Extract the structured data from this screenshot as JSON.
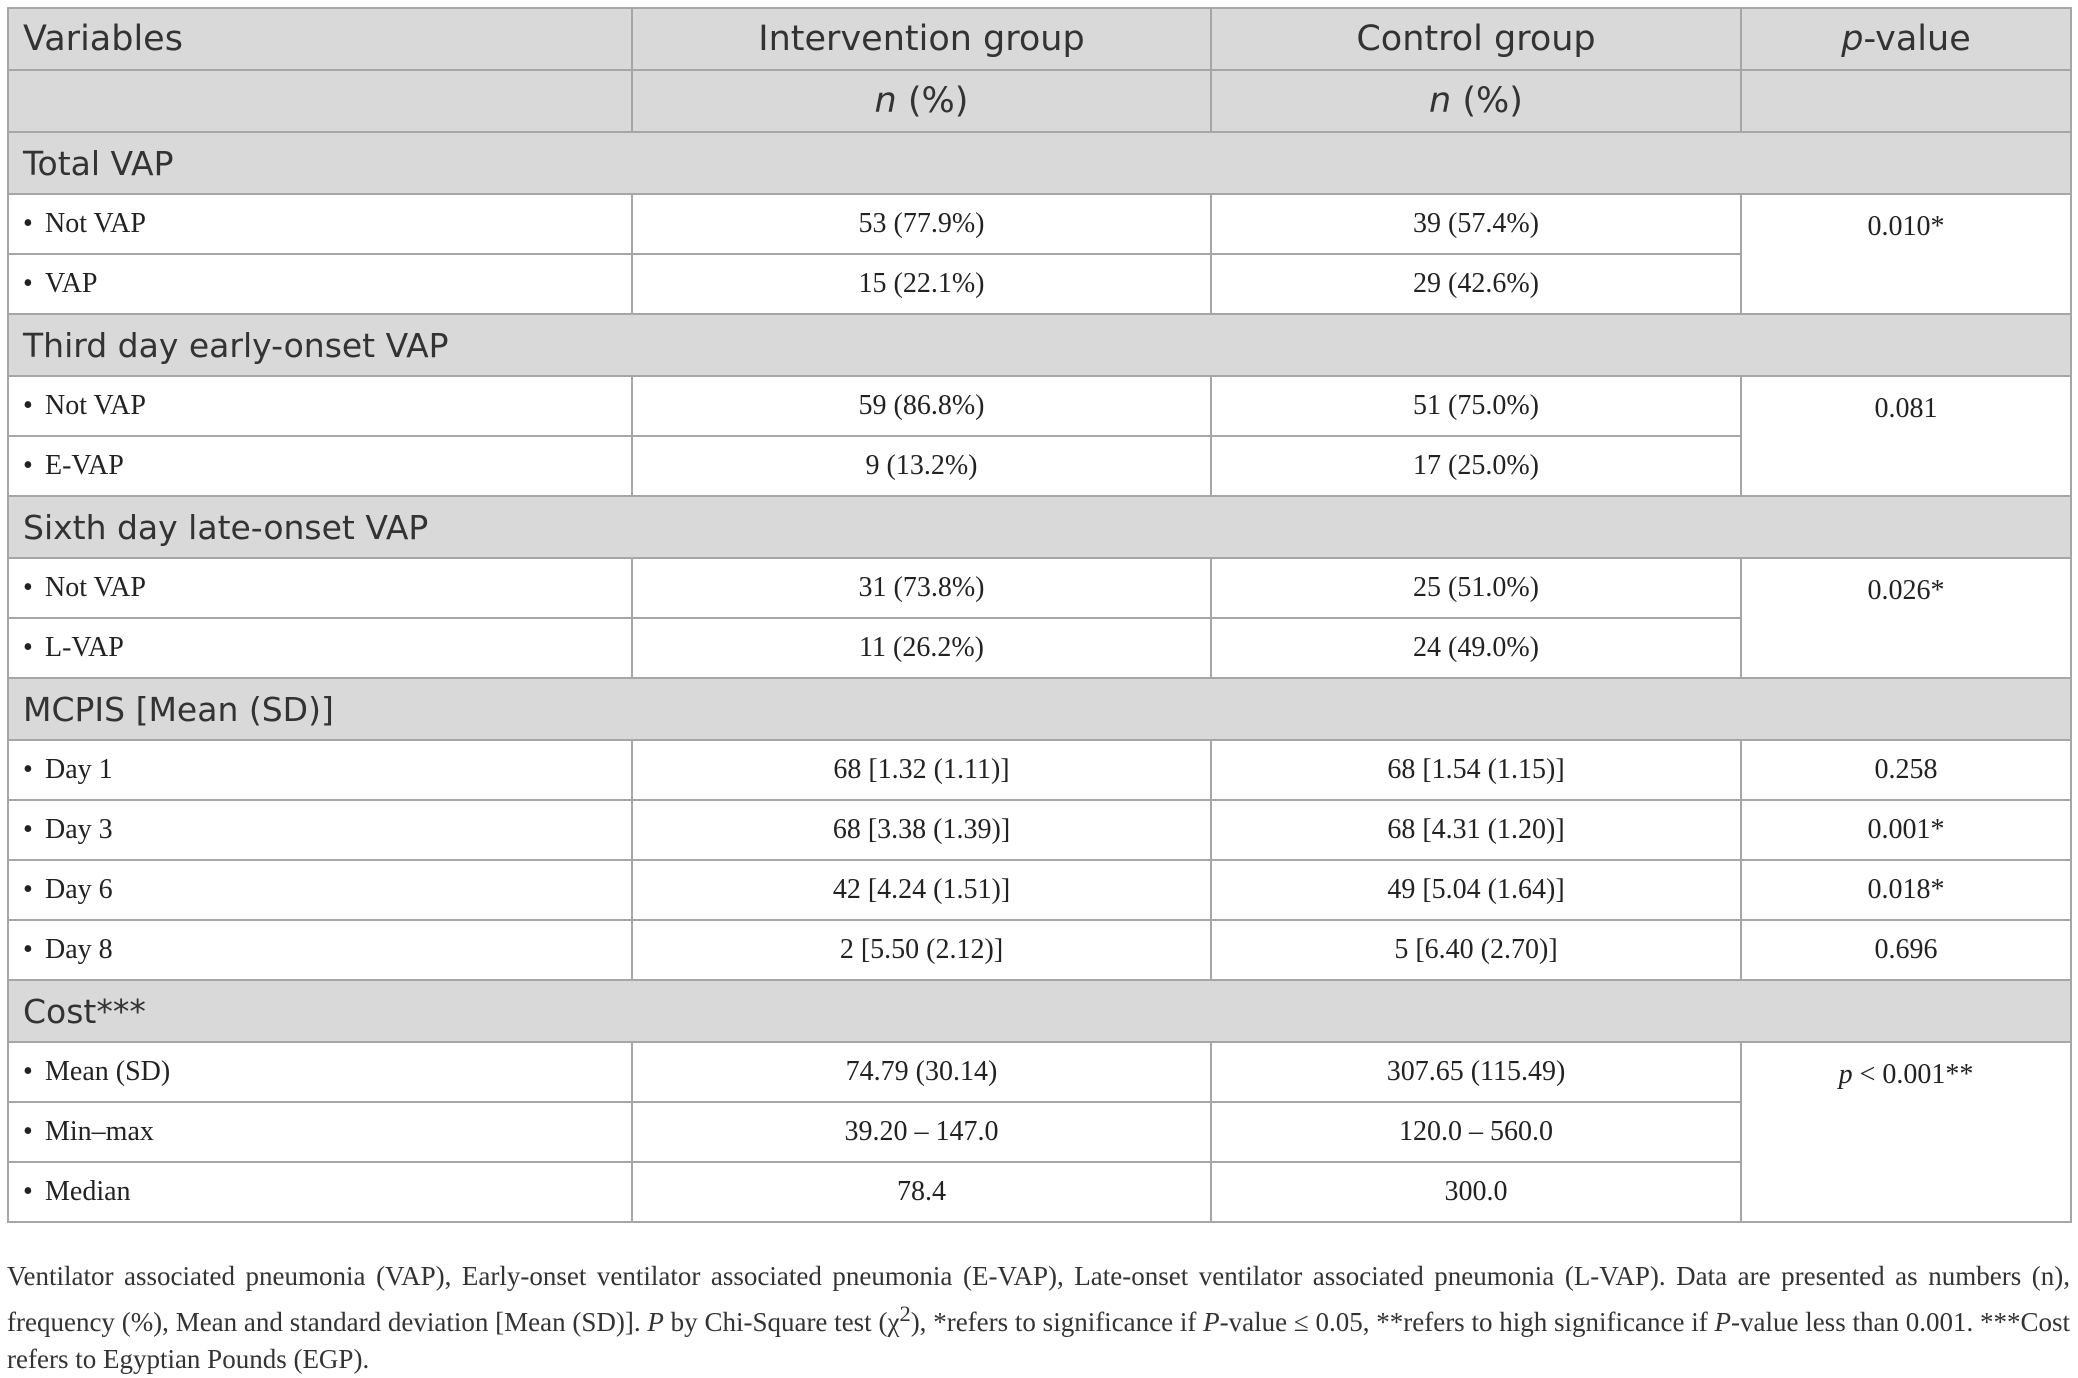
{
  "header": {
    "variables": "Variables",
    "intervention": "Intervention group",
    "control": "Control group",
    "pvalue_italic": "p",
    "pvalue_rest": "-value",
    "sub_n": "n",
    "sub_pct": " (%)"
  },
  "bullet": "•",
  "sections": [
    {
      "title": "Total VAP",
      "p_value": "0.010*",
      "rows": [
        {
          "label": "Not VAP",
          "intervention": "53 (77.9%)",
          "control": "39 (57.4%)"
        },
        {
          "label": "VAP",
          "intervention": "15 (22.1%)",
          "control": "29 (42.6%)"
        }
      ]
    },
    {
      "title": "Third day early-onset VAP",
      "p_value": "0.081",
      "rows": [
        {
          "label": "Not VAP",
          "intervention": "59 (86.8%)",
          "control": "51 (75.0%)"
        },
        {
          "label": "E-VAP",
          "intervention": "9 (13.2%)",
          "control": "17 (25.0%)"
        }
      ]
    },
    {
      "title": "Sixth day late-onset VAP",
      "p_value": "0.026*",
      "rows": [
        {
          "label": "Not VAP",
          "intervention": "31 (73.8%)",
          "control": "25 (51.0%)"
        },
        {
          "label": "L-VAP",
          "intervention": "11 (26.2%)",
          "control": "24 (49.0%)"
        }
      ]
    },
    {
      "title": "MCPIS [Mean (SD)]",
      "rows": [
        {
          "label": "Day 1",
          "intervention": "68 [1.32 (1.11)]",
          "control": "68 [1.54 (1.15)]",
          "p_value": "0.258"
        },
        {
          "label": "Day 3",
          "intervention": "68 [3.38 (1.39)]",
          "control": "68 [4.31 (1.20)]",
          "p_value": "0.001*"
        },
        {
          "label": "Day 6",
          "intervention": "42 [4.24 (1.51)]",
          "control": "49 [5.04 (1.64)]",
          "p_value": "0.018*"
        },
        {
          "label": "Day 8",
          "intervention": "2 [5.50 (2.12)]",
          "control": "5 [6.40 (2.70)]",
          "p_value": "0.696"
        }
      ]
    },
    {
      "title": "Cost***",
      "p_value_italic": "p",
      "p_value_rest": " < 0.001**",
      "rows": [
        {
          "label": "Mean (SD)",
          "intervention": "74.79 (30.14)",
          "control": "307.65 (115.49)"
        },
        {
          "label": "Min–max",
          "intervention": "39.20 – 147.0",
          "control": "120.0 – 560.0"
        },
        {
          "label": "Median",
          "intervention": "78.4",
          "control": "300.0"
        }
      ]
    }
  ],
  "caption": {
    "part1": "Ventilator associated pneumonia (VAP), Early-onset ventilator associated pneumonia (E-VAP), Late-onset ventilator associated pneumonia (L-VAP). Data are presented as numbers (n), frequency (%), Mean and standard deviation [Mean (SD)]. ",
    "p_italic": "P",
    "part2": " by Chi-Square test (χ",
    "sup": "2",
    "part3": "), *refers to significance if ",
    "p_italic2": "P",
    "part4": "-value ≤ 0.05, **refers to high significance if ",
    "p_italic3": "P",
    "part5": "-value less than 0.001. ***Cost refers to Egyptian Pounds (EGP)."
  }
}
